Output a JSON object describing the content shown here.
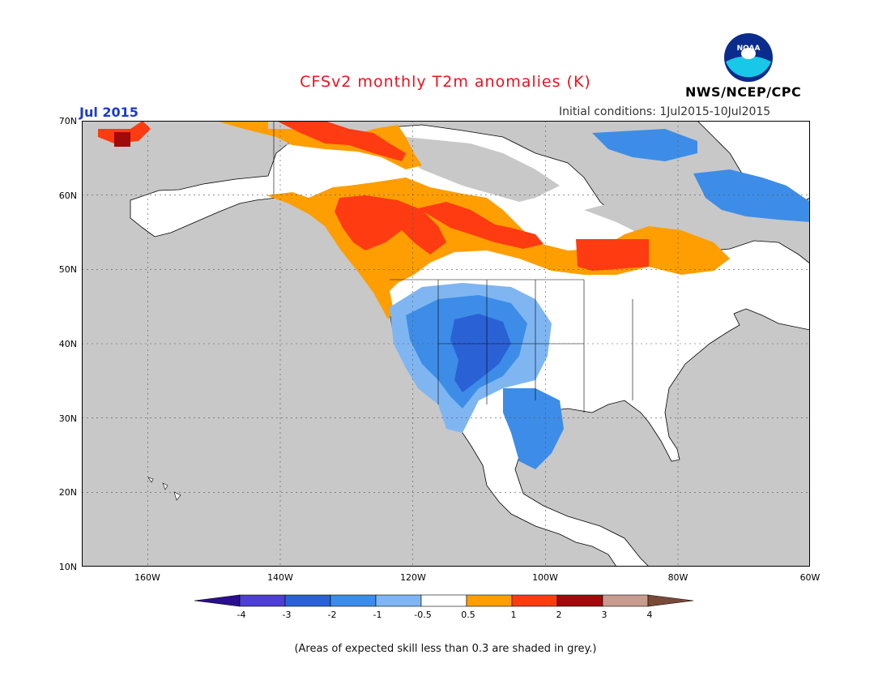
{
  "header": {
    "title": "CFSv2 monthly T2m anomalies (K)",
    "month": "Jul 2015",
    "initial_conditions": "Initial conditions: 1Jul2015-10Jul2015",
    "agency": "NWS/NCEP/CPC",
    "logo_text": "NOAA"
  },
  "map": {
    "lat_labels": [
      "70N",
      "60N",
      "50N",
      "40N",
      "30N",
      "20N",
      "10N"
    ],
    "lon_labels": [
      "160W",
      "140W",
      "120W",
      "100W",
      "80W",
      "60W"
    ],
    "background_color": "#c8c8c8"
  },
  "colorbar": {
    "labels": [
      "-4",
      "-3",
      "-2",
      "-1",
      "-0.5",
      "0.5",
      "1",
      "2",
      "3",
      "4"
    ],
    "colors": [
      "#2a0e8e",
      "#4d3fd3",
      "#2a62d6",
      "#3d8de8",
      "#7fb6f2",
      "#ffffff",
      "#ff9e00",
      "#ff3b12",
      "#a00a0a",
      "#c79c8e",
      "#7a4a38"
    ]
  },
  "footer": {
    "note": "(Areas of expected skill less than 0.3 are shaded in grey.)"
  },
  "colors": {
    "title": "#e8121f",
    "month": "#1c39d4",
    "skill_grey": "#c8c8c8"
  }
}
